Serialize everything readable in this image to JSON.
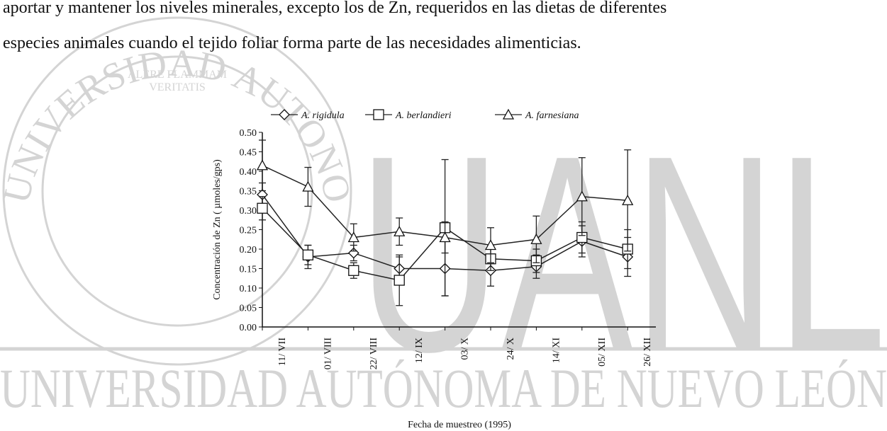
{
  "text": {
    "lines": [
      "aportar y mantener los niveles minerales, excepto los de Zn, requeridos en las dietas de diferentes",
      "especies animales cuando el tejido foliar forma parte de las necesidades alimenticias."
    ]
  },
  "watermark": {
    "letters": "UANL",
    "name": "UNIVERSIDAD AUTÓNOMA DE NUEVO LEÓN",
    "seal_ring": "UNIVERSIDAD AUTONOMA DE NUEVO LEON",
    "motto_1": "ALERE FLAMMAM",
    "motto_2": "VERITATIS"
  },
  "chart_data": {
    "type": "line",
    "x_label": "Fecha de muestreo (1995)",
    "y_label": "Concentración de Zn ( µmoles/gps)",
    "categories": [
      "11/ VII",
      "01/ VIII",
      "22/ VIII",
      "12/ IX",
      "03/ X",
      "24/ X",
      "14/ XI",
      "05/ XII",
      "26/ XII"
    ],
    "ylim": [
      0,
      0.5
    ],
    "yticks": [
      {
        "value": 0,
        "label": "0.00"
      },
      {
        "value": 0.05,
        "label": "0.05"
      },
      {
        "value": 0.1,
        "label": "0.10"
      },
      {
        "value": 0.15,
        "label": "0.15"
      },
      {
        "value": 0.2,
        "label": "0.20"
      },
      {
        "value": 0.25,
        "label": "0.25"
      },
      {
        "value": 0.3,
        "label": "0.30"
      },
      {
        "value": 0.35,
        "label": "0.35"
      },
      {
        "value": 0.4,
        "label": "0.40"
      },
      {
        "value": 0.45,
        "label": "0.45"
      },
      {
        "value": 0.5,
        "label": "0.50"
      }
    ],
    "series": [
      {
        "name": "A. rigidula",
        "color": "#222222",
        "marker": "diamond",
        "values": [
          0.34,
          0.18,
          0.19,
          0.15,
          0.15,
          0.145,
          0.155,
          0.22,
          0.18
        ],
        "errors": [
          0.03,
          0.03,
          0.02,
          0.03,
          0.07,
          0.04,
          0.03,
          0.04,
          0.05
        ]
      },
      {
        "name": "A. berlandieri",
        "color": "#222222",
        "marker": "square",
        "values": [
          0.305,
          0.185,
          0.145,
          0.12,
          0.255,
          0.175,
          0.17,
          0.23,
          0.2
        ],
        "errors": [
          0.03,
          0.025,
          0.02,
          0.065,
          0.175,
          0.03,
          0.03,
          0.04,
          0.05
        ]
      },
      {
        "name": "A. farnesiana",
        "color": "#222222",
        "marker": "triangle",
        "values": [
          0.415,
          0.36,
          0.23,
          0.245,
          0.23,
          0.21,
          0.225,
          0.335,
          0.325
        ],
        "errors": [
          0.065,
          0.05,
          0.035,
          0.035,
          0.04,
          0.045,
          0.06,
          0.1,
          0.13
        ]
      }
    ]
  }
}
